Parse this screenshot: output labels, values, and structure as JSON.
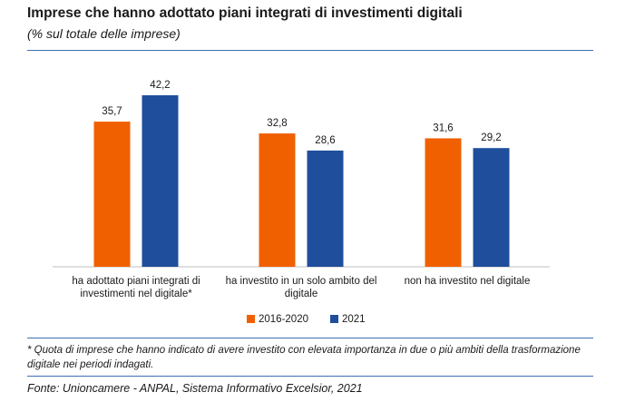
{
  "header": {
    "title": "Imprese che hanno adottato piani integrati di investimenti digitali",
    "subtitle": "(% sul totale delle imprese)"
  },
  "chart_data": {
    "type": "bar",
    "categories": [
      [
        "ha adottato piani integrati di",
        "investimenti nel digitale*"
      ],
      [
        "ha investito in un solo ambito del",
        "digitale"
      ],
      [
        "non ha investito nel digitale"
      ]
    ],
    "series": [
      {
        "name": "2016-2020",
        "values": [
          35.7,
          32.8,
          31.6
        ],
        "labels": [
          "35,7",
          "32,8",
          "31,6"
        ],
        "color": "#f06000"
      },
      {
        "name": "2021",
        "values": [
          42.2,
          28.6,
          29.2
        ],
        "labels": [
          "42,2",
          "28,6",
          "29,2"
        ],
        "color": "#1f4e9c"
      }
    ],
    "ylim": [
      0,
      50
    ],
    "grid": false,
    "legend": "bottom"
  },
  "footnote": "* Quota di imprese che hanno indicato di avere investito con elevata importanza in due o più ambiti della trasformazione digitale nei periodi indagati.",
  "source": "Fonte: Unioncamere - ANPAL, Sistema Informativo Excelsior, 2021"
}
